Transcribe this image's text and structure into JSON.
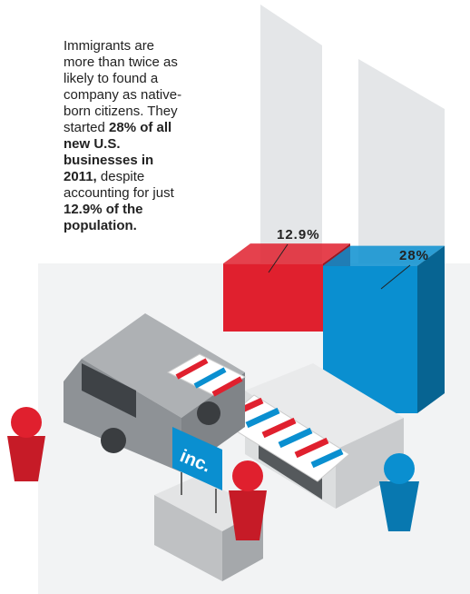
{
  "chart_data": {
    "type": "bar",
    "categories": [
      null,
      null
    ],
    "values": [
      12.9,
      28
    ],
    "value_labels": [
      "12.9%",
      "28%"
    ],
    "colors": [
      "#e0202e",
      "#0a8fd0"
    ],
    "annotation": [
      {
        "text": "Immigrants are more than twice as likely to found a company as native-born citizens. They started ",
        "bold": false
      },
      {
        "text": "28% of all new U.S. businesses in 2011,",
        "bold": true
      },
      {
        "text": " despite accounting for just ",
        "bold": false
      },
      {
        "text": "12.9% of the population.",
        "bold": true
      }
    ]
  }
}
